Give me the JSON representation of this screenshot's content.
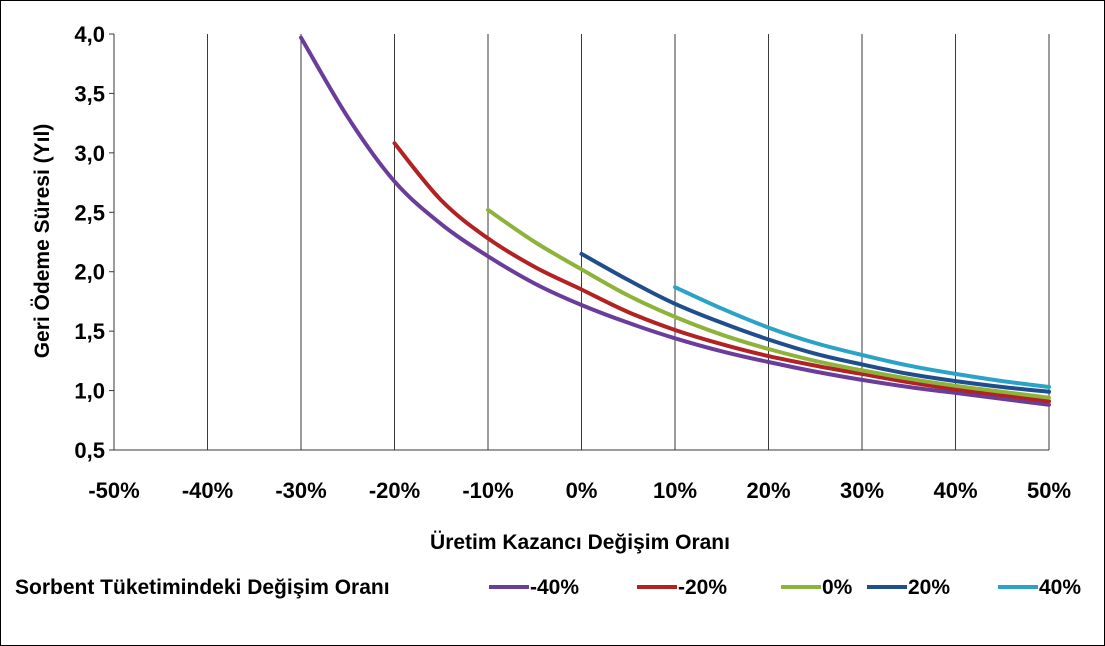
{
  "chart_data": {
    "type": "line",
    "title": "",
    "xlabel": "Üretim Kazancı Değişim Oranı",
    "ylabel": "Geri Ödeme Süresi (Yıl)",
    "xlim": [
      -50,
      50
    ],
    "ylim": [
      0.5,
      4.0
    ],
    "grid": true,
    "x_ticks": [
      -50,
      -40,
      -30,
      -20,
      -10,
      0,
      10,
      20,
      30,
      40,
      50
    ],
    "x_tick_labels": [
      "-50%",
      "-40%",
      "-30%",
      "-20%",
      "-10%",
      "0%",
      "10%",
      "20%",
      "30%",
      "40%",
      "50%"
    ],
    "y_ticks": [
      0.5,
      1.0,
      1.5,
      2.0,
      2.5,
      3.0,
      3.5,
      4.0
    ],
    "y_tick_labels": [
      "0,5",
      "1,0",
      "1,5",
      "2,0",
      "2,5",
      "3,0",
      "3,5",
      "4,0"
    ],
    "legend": {
      "title": "Sorbent Tüketimindeki Değişim Oranı",
      "placement": "bottom"
    },
    "series": [
      {
        "name": "-40%",
        "color": "#6a3d9a",
        "x": [
          -30,
          -25,
          -20,
          -15,
          -10,
          -5,
          0,
          5,
          10,
          15,
          20,
          25,
          30,
          35,
          40,
          45,
          50
        ],
        "y": [
          3.97,
          3.3,
          2.76,
          2.4,
          2.13,
          1.9,
          1.72,
          1.57,
          1.44,
          1.33,
          1.24,
          1.16,
          1.09,
          1.03,
          0.98,
          0.93,
          0.88
        ]
      },
      {
        "name": "-20%",
        "color": "#b22222",
        "x": [
          -20,
          -15,
          -10,
          -5,
          0,
          5,
          10,
          15,
          20,
          25,
          30,
          35,
          40,
          45,
          50
        ],
        "y": [
          3.08,
          2.6,
          2.28,
          2.04,
          1.85,
          1.66,
          1.51,
          1.39,
          1.29,
          1.21,
          1.14,
          1.07,
          1.01,
          0.96,
          0.91
        ]
      },
      {
        "name": "0%",
        "color": "#8db33a",
        "x": [
          -10,
          -5,
          0,
          5,
          10,
          15,
          20,
          25,
          30,
          35,
          40,
          45,
          50
        ],
        "y": [
          2.52,
          2.25,
          2.02,
          1.8,
          1.62,
          1.47,
          1.35,
          1.25,
          1.17,
          1.1,
          1.04,
          0.99,
          0.94
        ]
      },
      {
        "name": "20%",
        "color": "#1f4e8c",
        "x": [
          0,
          5,
          10,
          15,
          20,
          25,
          30,
          35,
          40,
          45,
          50
        ],
        "y": [
          2.15,
          1.93,
          1.73,
          1.57,
          1.43,
          1.31,
          1.22,
          1.14,
          1.08,
          1.03,
          0.99
        ]
      },
      {
        "name": "40%",
        "color": "#2ba3c7",
        "x": [
          10,
          15,
          20,
          25,
          30,
          35,
          40,
          45,
          50
        ],
        "y": [
          1.87,
          1.69,
          1.53,
          1.4,
          1.3,
          1.21,
          1.14,
          1.08,
          1.03
        ]
      }
    ]
  }
}
